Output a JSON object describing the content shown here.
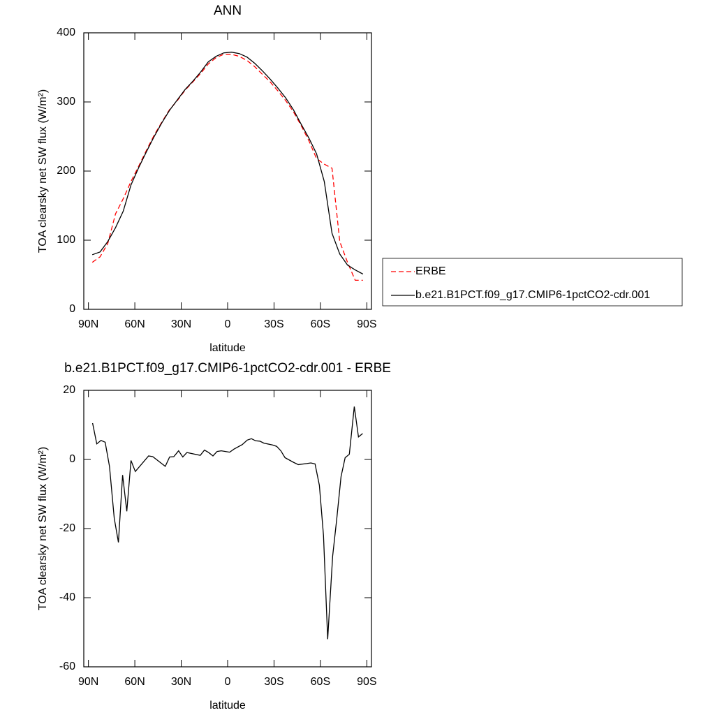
{
  "chart_data": [
    {
      "type": "line",
      "title": "ANN",
      "xlabel": "latitude",
      "ylabel": "TOA clearsky net SW flux (W/m²)",
      "x": [
        87.5,
        82.5,
        77.5,
        72.5,
        67.5,
        62.5,
        57.5,
        52.5,
        47.5,
        42.5,
        37.5,
        32.5,
        27.5,
        22.5,
        17.5,
        12.5,
        7.5,
        2.5,
        -2.5,
        -7.5,
        -12.5,
        -17.5,
        -22.5,
        -27.5,
        -32.5,
        -37.5,
        -42.5,
        -47.5,
        -52.5,
        -57.5,
        -62.5,
        -67.5,
        -72.5,
        -77.5,
        -82.5,
        -87.5
      ],
      "series": [
        {
          "name": "ERBE",
          "color": "#ff0000",
          "dashed": true,
          "values": [
            68,
            76,
            95,
            138,
            160,
            185,
            207,
            230,
            252,
            271,
            289,
            302,
            317,
            329,
            341,
            355,
            364,
            369,
            369,
            366,
            360,
            351,
            340,
            329,
            316,
            302,
            286,
            266,
            244,
            218,
            210,
            204,
            98,
            68,
            42,
            42
          ]
        },
        {
          "name": "b.e21.B1PCT.f09_g17.CMIP6-1pctCO2-cdr.001",
          "color": "#000000",
          "dashed": false,
          "values": [
            79,
            83,
            98,
            118,
            142,
            180,
            205,
            228,
            250,
            270,
            288,
            303,
            318,
            330,
            343,
            358,
            366,
            371,
            372,
            370,
            365,
            356,
            345,
            333,
            320,
            306,
            289,
            268,
            248,
            225,
            185,
            110,
            80,
            64,
            57,
            51
          ]
        }
      ],
      "xlim": [
        93,
        -93
      ],
      "xticks": [
        {
          "value": 90,
          "label": "90N"
        },
        {
          "value": 60,
          "label": "60N"
        },
        {
          "value": 30,
          "label": "30N"
        },
        0,
        {
          "value": -30,
          "label": "30S"
        },
        {
          "value": -60,
          "label": "60S"
        },
        {
          "value": -90,
          "label": "90S"
        }
      ],
      "ylim": [
        0,
        400
      ],
      "yticks": [
        0,
        100,
        200,
        300,
        400
      ],
      "legend": "right"
    },
    {
      "type": "line",
      "title": "b.e21.B1PCT.f09_g17.CMIP6-1pctCO2-cdr.001 - ERBE",
      "xlabel": "latitude",
      "ylabel": "TOA clearsky net SW flux (W/m²)",
      "x": [
        87.3,
        84.6,
        81.9,
        79.2,
        76.4,
        73.3,
        70.6,
        67.9,
        65.2,
        62.5,
        59.7,
        51.1,
        48.4,
        40.3,
        37.5,
        34.8,
        31.7,
        29,
        26.3,
        17.7,
        15,
        12.3,
        9.5,
        6.8,
        4.1,
        -1.3,
        -4.1,
        -9.5,
        -12.7,
        -15.4,
        -18.1,
        -20.8,
        -23.5,
        -29,
        -31.7,
        -34.4,
        -37.1,
        -42.5,
        -45.7,
        -51.1,
        -53.8,
        -56.5,
        -59.3,
        -62,
        -64.7,
        -67.9,
        -70.6,
        -73.3,
        -76,
        -78.7,
        -81.9,
        -84.6,
        -87.3
      ],
      "series": [
        {
          "color": "#000000",
          "dashed": false,
          "values": [
            10.5,
            4.5,
            5.5,
            5,
            -2,
            -17,
            -24,
            -4.5,
            -15,
            -0.3,
            -3.5,
            1,
            0.8,
            -2,
            0.7,
            0.8,
            2.5,
            0.7,
            2,
            1.2,
            2.7,
            2,
            1,
            2.3,
            2.5,
            2.1,
            3,
            4.3,
            5.6,
            6,
            5.4,
            5.3,
            4.7,
            4.2,
            3.8,
            2.5,
            0.5,
            -0.8,
            -1.5,
            -1.2,
            -1,
            -1.3,
            -7.5,
            -22,
            -52,
            -28,
            -17,
            -5,
            0.5,
            1.5,
            15.3,
            6.5,
            7.5
          ]
        }
      ],
      "xlim": [
        93,
        -93
      ],
      "xticks": [
        {
          "value": 90,
          "label": "90N"
        },
        {
          "value": 60,
          "label": "60N"
        },
        {
          "value": 30,
          "label": "30N"
        },
        0,
        {
          "value": -30,
          "label": "30S"
        },
        {
          "value": -60,
          "label": "60S"
        },
        {
          "value": -90,
          "label": "90S"
        }
      ],
      "ylim": [
        -60,
        20
      ],
      "yticks": [
        -60,
        -40,
        -20,
        0,
        20
      ]
    }
  ]
}
